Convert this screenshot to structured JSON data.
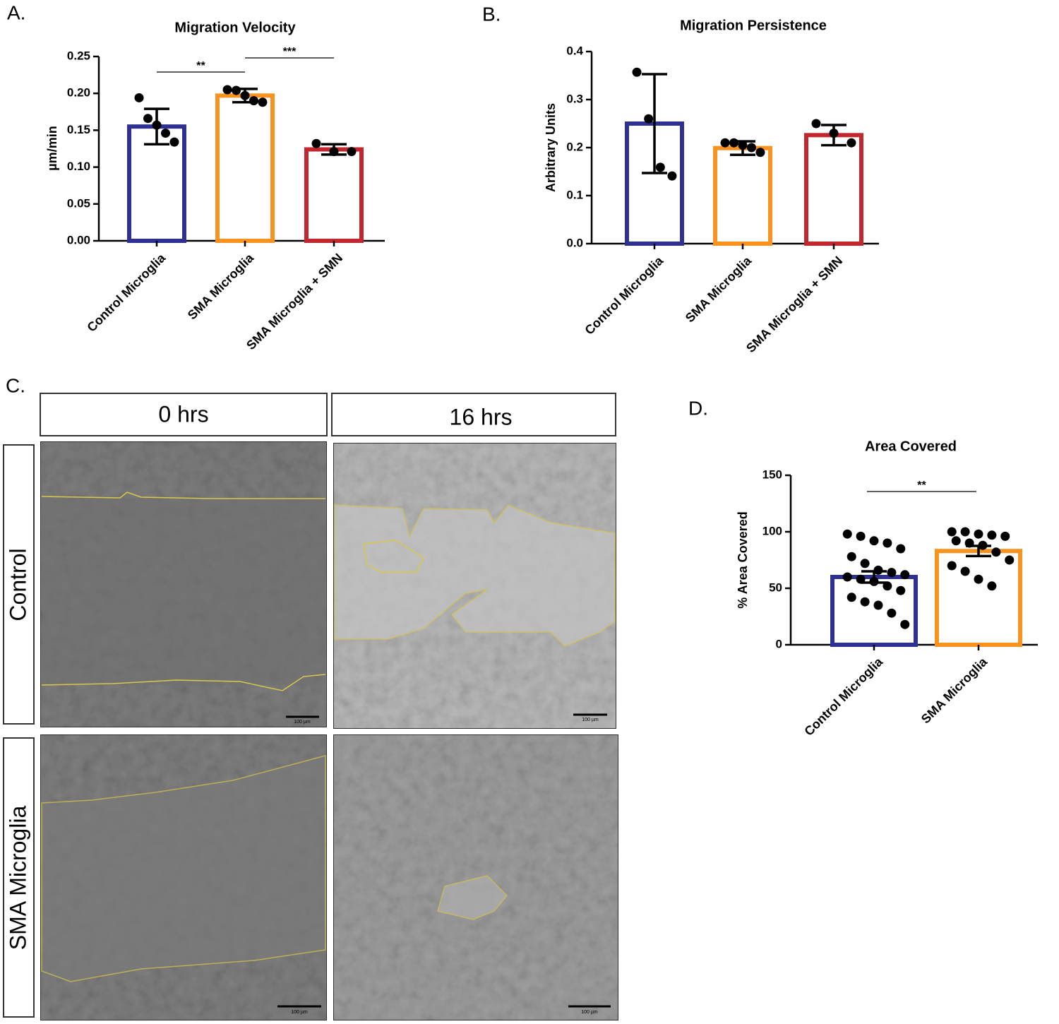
{
  "chart_data": [
    {
      "type": "bar",
      "panel": "A.",
      "title": "Migration Velocity",
      "y_label": "µm/min",
      "categories": [
        "Control Microglia",
        "SMA Microglia",
        "SMA Microglia + SMN"
      ],
      "values": [
        0.155,
        0.197,
        0.124
      ],
      "errors": [
        0.024,
        0.009,
        0.007
      ],
      "colors": [
        "#2e3192",
        "#f7931e",
        "#c1272d"
      ],
      "points": [
        [
          0.194,
          0.166,
          0.157,
          0.146,
          0.134
        ],
        [
          0.205,
          0.204,
          0.197,
          0.19,
          0.188
        ],
        [
          0.132,
          0.121,
          0.121
        ]
      ],
      "annotations": [
        "**",
        "***"
      ],
      "ylim": [
        0,
        0.25
      ],
      "yticks": [
        {
          "value": 0,
          "label": "0.00"
        },
        {
          "value": 0.05,
          "label": "0.05"
        },
        {
          "value": 0.1,
          "label": "0.10"
        },
        {
          "value": 0.15,
          "label": "0.15"
        },
        {
          "value": 0.2,
          "label": "0.20"
        },
        {
          "value": 0.25,
          "label": "0.25"
        }
      ]
    },
    {
      "type": "bar",
      "panel": "B.",
      "title": "Migration Persistence",
      "y_label": "Arbitrary Units",
      "categories": [
        "Control Microglia",
        "SMA Microglia",
        "SMA Microglia + SMN"
      ],
      "values": [
        0.25,
        0.199,
        0.226
      ],
      "errors": [
        0.103,
        0.014,
        0.021
      ],
      "colors": [
        "#2e3192",
        "#f7931e",
        "#c1272d"
      ],
      "points": [
        [
          0.357,
          0.26,
          0.159,
          0.141
        ],
        [
          0.21,
          0.21,
          0.205,
          0.2,
          0.19
        ],
        [
          0.25,
          0.23,
          0.21
        ]
      ],
      "annotations": [],
      "ylim": [
        0,
        0.4
      ],
      "yticks": [
        {
          "value": 0,
          "label": "0.0"
        },
        0.1,
        0.2,
        0.3,
        0.4
      ]
    },
    {
      "type": "bar",
      "panel": "D.",
      "title": "Area Covered",
      "y_label": "% Area Covered",
      "categories": [
        "Control Microglia",
        "SMA Microglia"
      ],
      "values": [
        60,
        83
      ],
      "errors": [
        5,
        4.5
      ],
      "colors": [
        "#2e3192",
        "#f7931e"
      ],
      "points": [
        [
          98,
          96,
          92,
          90,
          85,
          78,
          72,
          66,
          64,
          62,
          60,
          58,
          56,
          52,
          48,
          42,
          38,
          35,
          28,
          18
        ],
        [
          100,
          100,
          98,
          97,
          96,
          92,
          90,
          88,
          82,
          75,
          70,
          65,
          58,
          52
        ]
      ],
      "annotations": [
        "**"
      ],
      "ylim": [
        0,
        150
      ],
      "yticks": [
        0,
        50,
        100,
        150
      ]
    }
  ],
  "panel_c": {
    "panel": "C.",
    "columns": [
      "0 hrs",
      "16 hrs"
    ],
    "rows": [
      "Control",
      "SMA Microglia"
    ],
    "scale_bars": [
      "100 µm",
      "100 µm",
      "100 µm",
      "100 µm"
    ]
  }
}
